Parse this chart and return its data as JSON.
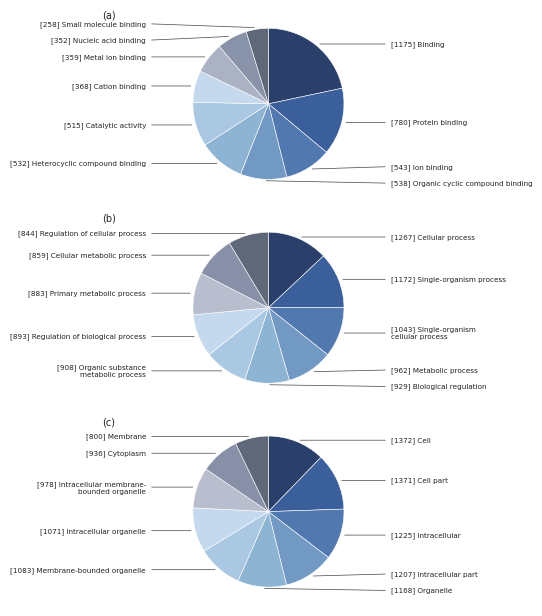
{
  "charts": [
    {
      "label": "(a)",
      "slices": [
        {
          "value": 1175,
          "text": "[1175] Binding",
          "color": "#2b3f6b",
          "side": "right"
        },
        {
          "value": 780,
          "text": "[780] Protein binding",
          "color": "#3a5f9a",
          "side": "right"
        },
        {
          "value": 543,
          "text": "[543] Ion binding",
          "color": "#5278b0",
          "side": "right"
        },
        {
          "value": 538,
          "text": "[538] Organic cyclic compound binding",
          "color": "#7299c4",
          "side": "right"
        },
        {
          "value": 532,
          "text": "[532] Heterocyclic compound binding",
          "color": "#8eb4d4",
          "side": "left"
        },
        {
          "value": 515,
          "text": "[515] Catalytic activity",
          "color": "#aac8e2",
          "side": "left"
        },
        {
          "value": 368,
          "text": "[368] Cation binding",
          "color": "#c5d9ee",
          "side": "left"
        },
        {
          "value": 359,
          "text": "[359] Metal ion binding",
          "color": "#aab2c4",
          "side": "left"
        },
        {
          "value": 352,
          "text": "[352] Nucleic acid binding",
          "color": "#8892a8",
          "side": "left"
        },
        {
          "value": 258,
          "text": "[258] Small molecule binding",
          "color": "#5e6878",
          "side": "left"
        }
      ]
    },
    {
      "label": "(b)",
      "slices": [
        {
          "value": 1267,
          "text": "[1267] Cellular process",
          "color": "#2b3f6b",
          "side": "right"
        },
        {
          "value": 1172,
          "text": "[1172] Single-organism process",
          "color": "#3a5f9a",
          "side": "right"
        },
        {
          "value": 1043,
          "text": "[1043] Single-organism\ncellular process",
          "color": "#5278b0",
          "side": "right"
        },
        {
          "value": 962,
          "text": "[962] Metabolic process",
          "color": "#7299c4",
          "side": "right"
        },
        {
          "value": 929,
          "text": "[929] Biological regulation",
          "color": "#8eb4d4",
          "side": "right"
        },
        {
          "value": 908,
          "text": "[908] Organic substance\nmetabolic process",
          "color": "#aac8e2",
          "side": "left"
        },
        {
          "value": 893,
          "text": "[893] Regulation of biological process",
          "color": "#c5d9ee",
          "side": "left"
        },
        {
          "value": 883,
          "text": "[883] Primary metabolic process",
          "color": "#b8bece",
          "side": "left"
        },
        {
          "value": 859,
          "text": "[859] Cellular metabolic process",
          "color": "#8890a8",
          "side": "left"
        },
        {
          "value": 844,
          "text": "[844] Regulation of cellular process",
          "color": "#5e6878",
          "side": "left"
        }
      ]
    },
    {
      "label": "(c)",
      "slices": [
        {
          "value": 1372,
          "text": "[1372] Cell",
          "color": "#2b3f6b",
          "side": "right"
        },
        {
          "value": 1371,
          "text": "[1371] Cell part",
          "color": "#3a5f9a",
          "side": "right"
        },
        {
          "value": 1225,
          "text": "[1225] Intracellular",
          "color": "#5278b0",
          "side": "right"
        },
        {
          "value": 1207,
          "text": "[1207] Intracellular part",
          "color": "#7299c4",
          "side": "right"
        },
        {
          "value": 1168,
          "text": "[1168] Organelle",
          "color": "#8eb4d4",
          "side": "right"
        },
        {
          "value": 1083,
          "text": "[1083] Membrane-bounded organelle",
          "color": "#aac8e2",
          "side": "left"
        },
        {
          "value": 1071,
          "text": "[1071] Intracellular organelle",
          "color": "#c5d9ee",
          "side": "left"
        },
        {
          "value": 978,
          "text": "[978] Intracellular membrane-\nbounded organelle",
          "color": "#b8bece",
          "side": "left"
        },
        {
          "value": 936,
          "text": "[936] Cytoplasm",
          "color": "#8890a8",
          "side": "left"
        },
        {
          "value": 800,
          "text": "[800] Membrane",
          "color": "#5e6878",
          "side": "left"
        }
      ]
    }
  ],
  "bg_color": "#ffffff",
  "text_color": "#222222",
  "fontsize": 5.2,
  "label_fontsize": 7.0
}
